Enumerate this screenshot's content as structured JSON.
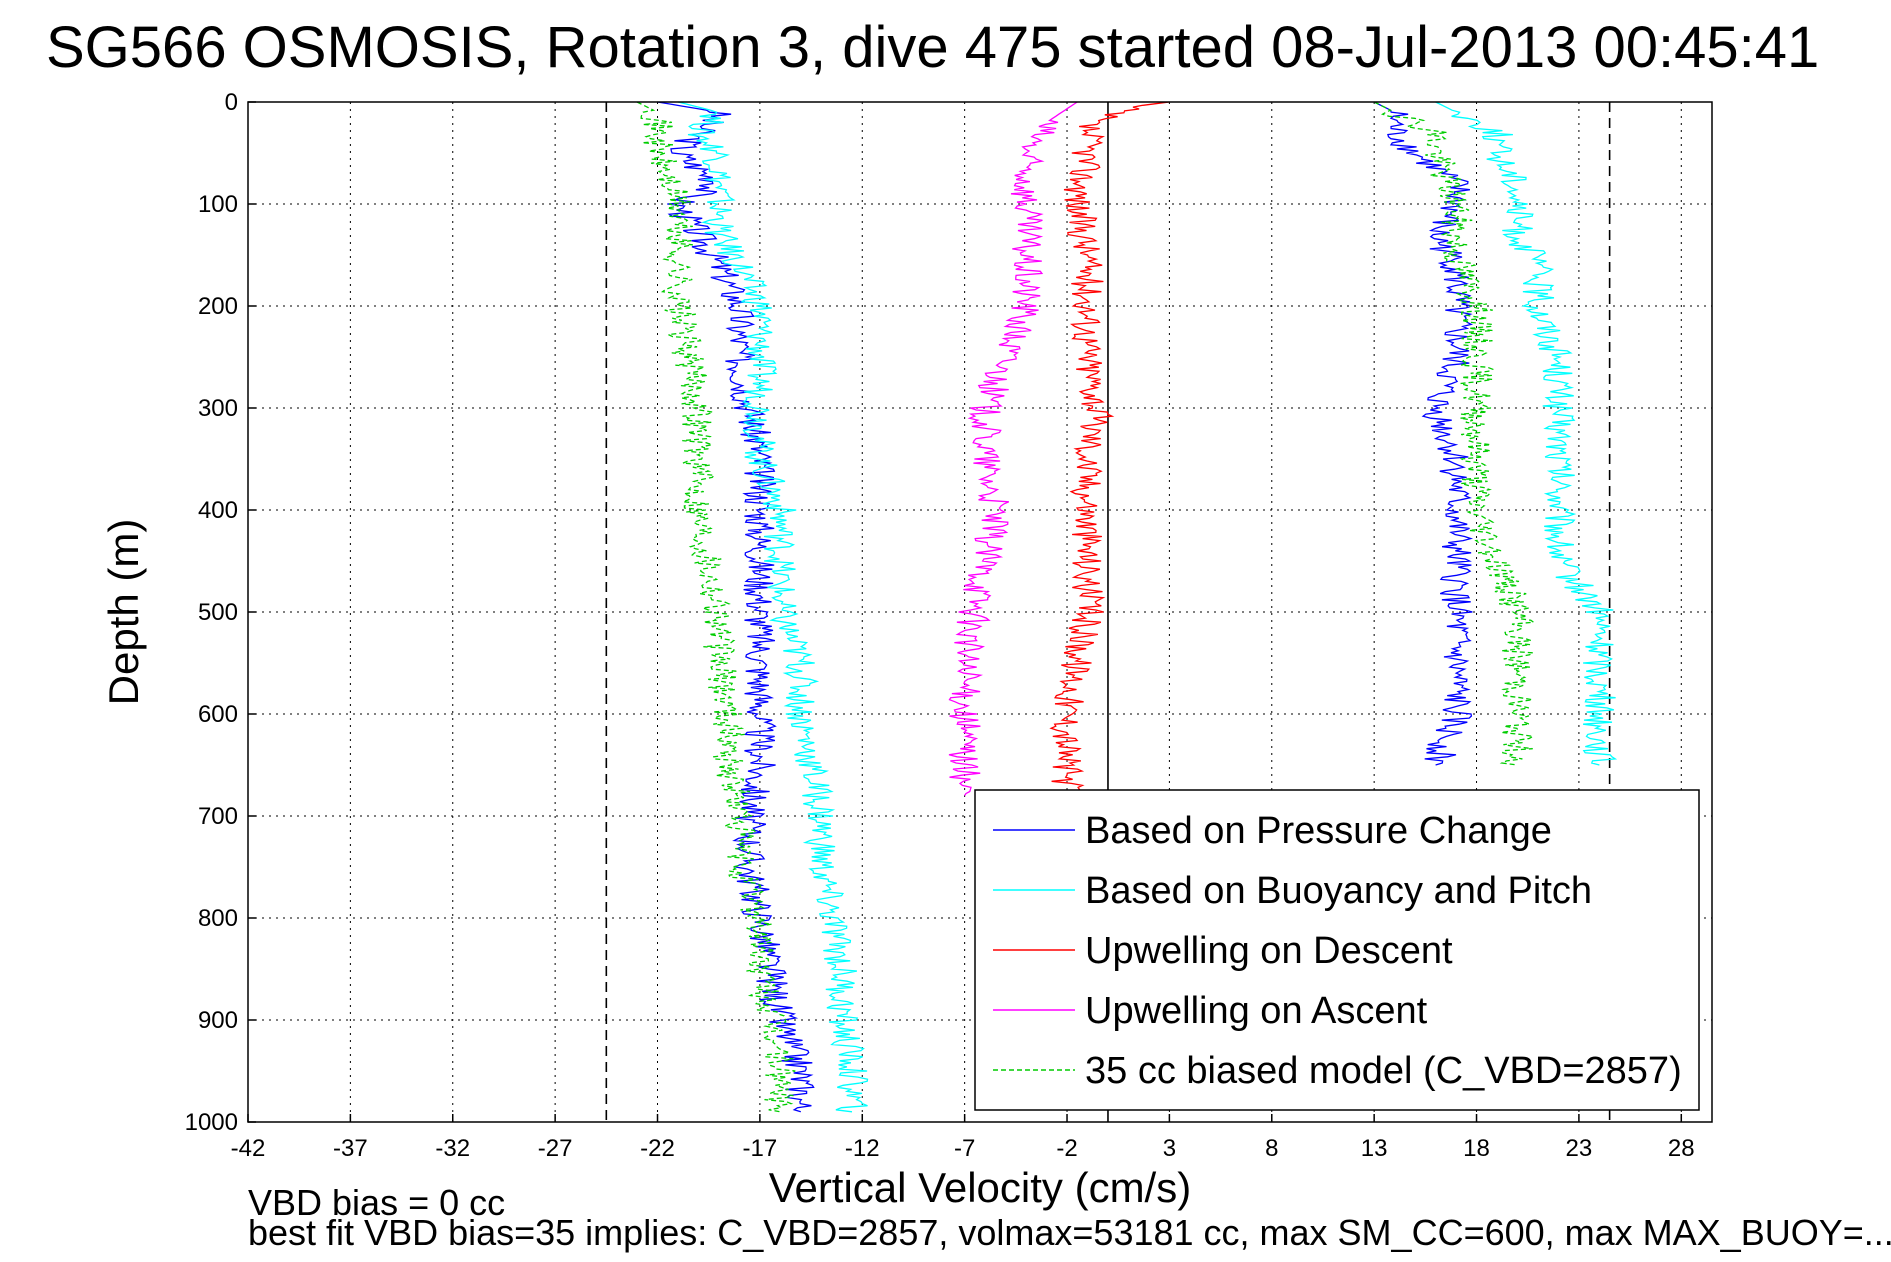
{
  "title": "SG566 OSMOSIS, Rotation 3, dive 475 started 08-Jul-2013 00:45:41",
  "footnotes": {
    "line1": "VBD bias = 0 cc",
    "line2": "best fit VBD bias=35 implies: C_VBD=2857, volmax=53181 cc, max SM_CC=600, max MAX_BUOY=..."
  },
  "chart_data": {
    "type": "line",
    "title": "SG566 OSMOSIS, Rotation 3, dive 475 started 08-Jul-2013 00:45:41",
    "xlabel": "Vertical Velocity (cm/s)",
    "ylabel": "Depth (m)",
    "xlim": [
      -42,
      29.5
    ],
    "ylim": [
      1000,
      0
    ],
    "y_reversed": true,
    "grid": true,
    "legend_position": "bottom-right",
    "x_ticks": [
      "-42",
      "-37",
      "-32",
      "-27",
      "-22",
      "-17",
      "-12",
      "-7",
      "-2",
      "3",
      "8",
      "13",
      "18",
      "23",
      "28"
    ],
    "y_ticks": [
      "0",
      "100",
      "200",
      "300",
      "400",
      "500",
      "600",
      "700",
      "800",
      "900",
      "1000"
    ],
    "reference_lines": [
      {
        "x": -24.5,
        "style": "dashed",
        "color": "#000000"
      },
      {
        "x": 0,
        "style": "solid",
        "color": "#000000"
      },
      {
        "x": 24.5,
        "style": "dashed",
        "color": "#000000"
      }
    ],
    "series": [
      {
        "name": "Based on Pressure Change",
        "color": "#0000ff",
        "style": "solid",
        "segments": [
          {
            "depth": [
              0,
              10,
              30,
              50,
              80,
              100,
              130,
              160,
              200,
              250,
              300,
              350,
              400,
              450,
              500,
              550,
              600,
              650,
              700,
              750,
              800,
              850,
              900,
              950,
              990
            ],
            "velocity": [
              -22,
              -19,
              -20,
              -21,
              -19,
              -21,
              -20,
              -19,
              -18,
              -18,
              -17.5,
              -17,
              -17,
              -17,
              -17,
              -17,
              -17,
              -17,
              -17.5,
              -17.5,
              -17,
              -16.5,
              -16,
              -15,
              -15
            ]
          },
          {
            "depth": [
              0,
              10,
              30,
              50,
              80,
              100,
              130,
              160,
              200,
              250,
              300,
              350,
              400,
              450,
              500,
              550,
              600,
              650
            ],
            "velocity": [
              13,
              14,
              14,
              15,
              17,
              17,
              16,
              17,
              17,
              17,
              16,
              17,
              17,
              17,
              17,
              17,
              17,
              16
            ]
          }
        ]
      },
      {
        "name": "Based on Buoyancy and Pitch",
        "color": "#00ffff",
        "style": "solid",
        "segments": [
          {
            "depth": [
              0,
              10,
              30,
              50,
              80,
              100,
              130,
              160,
              200,
              250,
              300,
              350,
              400,
              450,
              500,
              550,
              600,
              650,
              700,
              750,
              800,
              850,
              900,
              950,
              990
            ],
            "velocity": [
              -21,
              -19,
              -20,
              -19,
              -19,
              -19,
              -19,
              -18,
              -17,
              -17,
              -17,
              -17,
              -16,
              -16,
              -16,
              -15,
              -15,
              -14.5,
              -14,
              -14,
              -13.5,
              -13,
              -13,
              -12.5,
              -12.5
            ]
          },
          {
            "depth": [
              0,
              10,
              30,
              50,
              80,
              100,
              130,
              160,
              200,
              250,
              300,
              350,
              400,
              450,
              500,
              550,
              600,
              650
            ],
            "velocity": [
              16,
              17,
              19,
              19,
              20,
              20,
              20,
              21,
              21,
              22,
              22,
              22,
              22,
              22,
              24,
              24,
              24,
              24
            ]
          }
        ]
      },
      {
        "name": "Upwelling on Descent",
        "color": "#ff0000",
        "style": "solid",
        "segments": [
          {
            "depth": [
              0,
              5,
              20,
              50,
              100,
              150,
              200,
              250,
              300,
              350,
              400,
              450,
              500,
              550,
              600,
              650,
              680
            ],
            "velocity": [
              3,
              1,
              -1,
              -1,
              -1.5,
              -1,
              -1,
              -1,
              -0.5,
              -1,
              -1,
              -1,
              -1,
              -1.5,
              -2,
              -2,
              -2
            ]
          }
        ]
      },
      {
        "name": "Upwelling on Ascent",
        "color": "#ff00ff",
        "style": "solid",
        "segments": [
          {
            "depth": [
              0,
              20,
              50,
              100,
              150,
              200,
              250,
              300,
              350,
              400,
              450,
              500,
              550,
              600,
              650,
              680
            ],
            "velocity": [
              -1.5,
              -3,
              -4,
              -4,
              -4,
              -4,
              -5,
              -6,
              -6,
              -5.5,
              -6,
              -6.5,
              -7,
              -7,
              -7,
              -7
            ]
          }
        ]
      },
      {
        "name": "35 cc biased model (C_VBD=2857)",
        "color": "#00cc00",
        "style": "dashed",
        "segments": [
          {
            "depth": [
              0,
              10,
              30,
              50,
              100,
              150,
              200,
              250,
              300,
              350,
              400,
              450,
              500,
              550,
              600,
              650,
              700,
              750,
              800,
              850,
              900,
              950,
              990
            ],
            "velocity": [
              -23,
              -22,
              -22,
              -22,
              -21,
              -21,
              -21,
              -20.5,
              -20,
              -20,
              -20,
              -19.5,
              -19,
              -19,
              -18.5,
              -18.5,
              -18,
              -18,
              -17,
              -17,
              -16.5,
              -16,
              -16
            ]
          },
          {
            "depth": [
              0,
              10,
              30,
              50,
              100,
              150,
              200,
              250,
              300,
              350,
              400,
              450,
              500,
              550,
              600,
              650
            ],
            "velocity": [
              13,
              14,
              16,
              16,
              17,
              17,
              18,
              18,
              18,
              18,
              18,
              19,
              20,
              20,
              20,
              20
            ]
          }
        ]
      }
    ]
  }
}
